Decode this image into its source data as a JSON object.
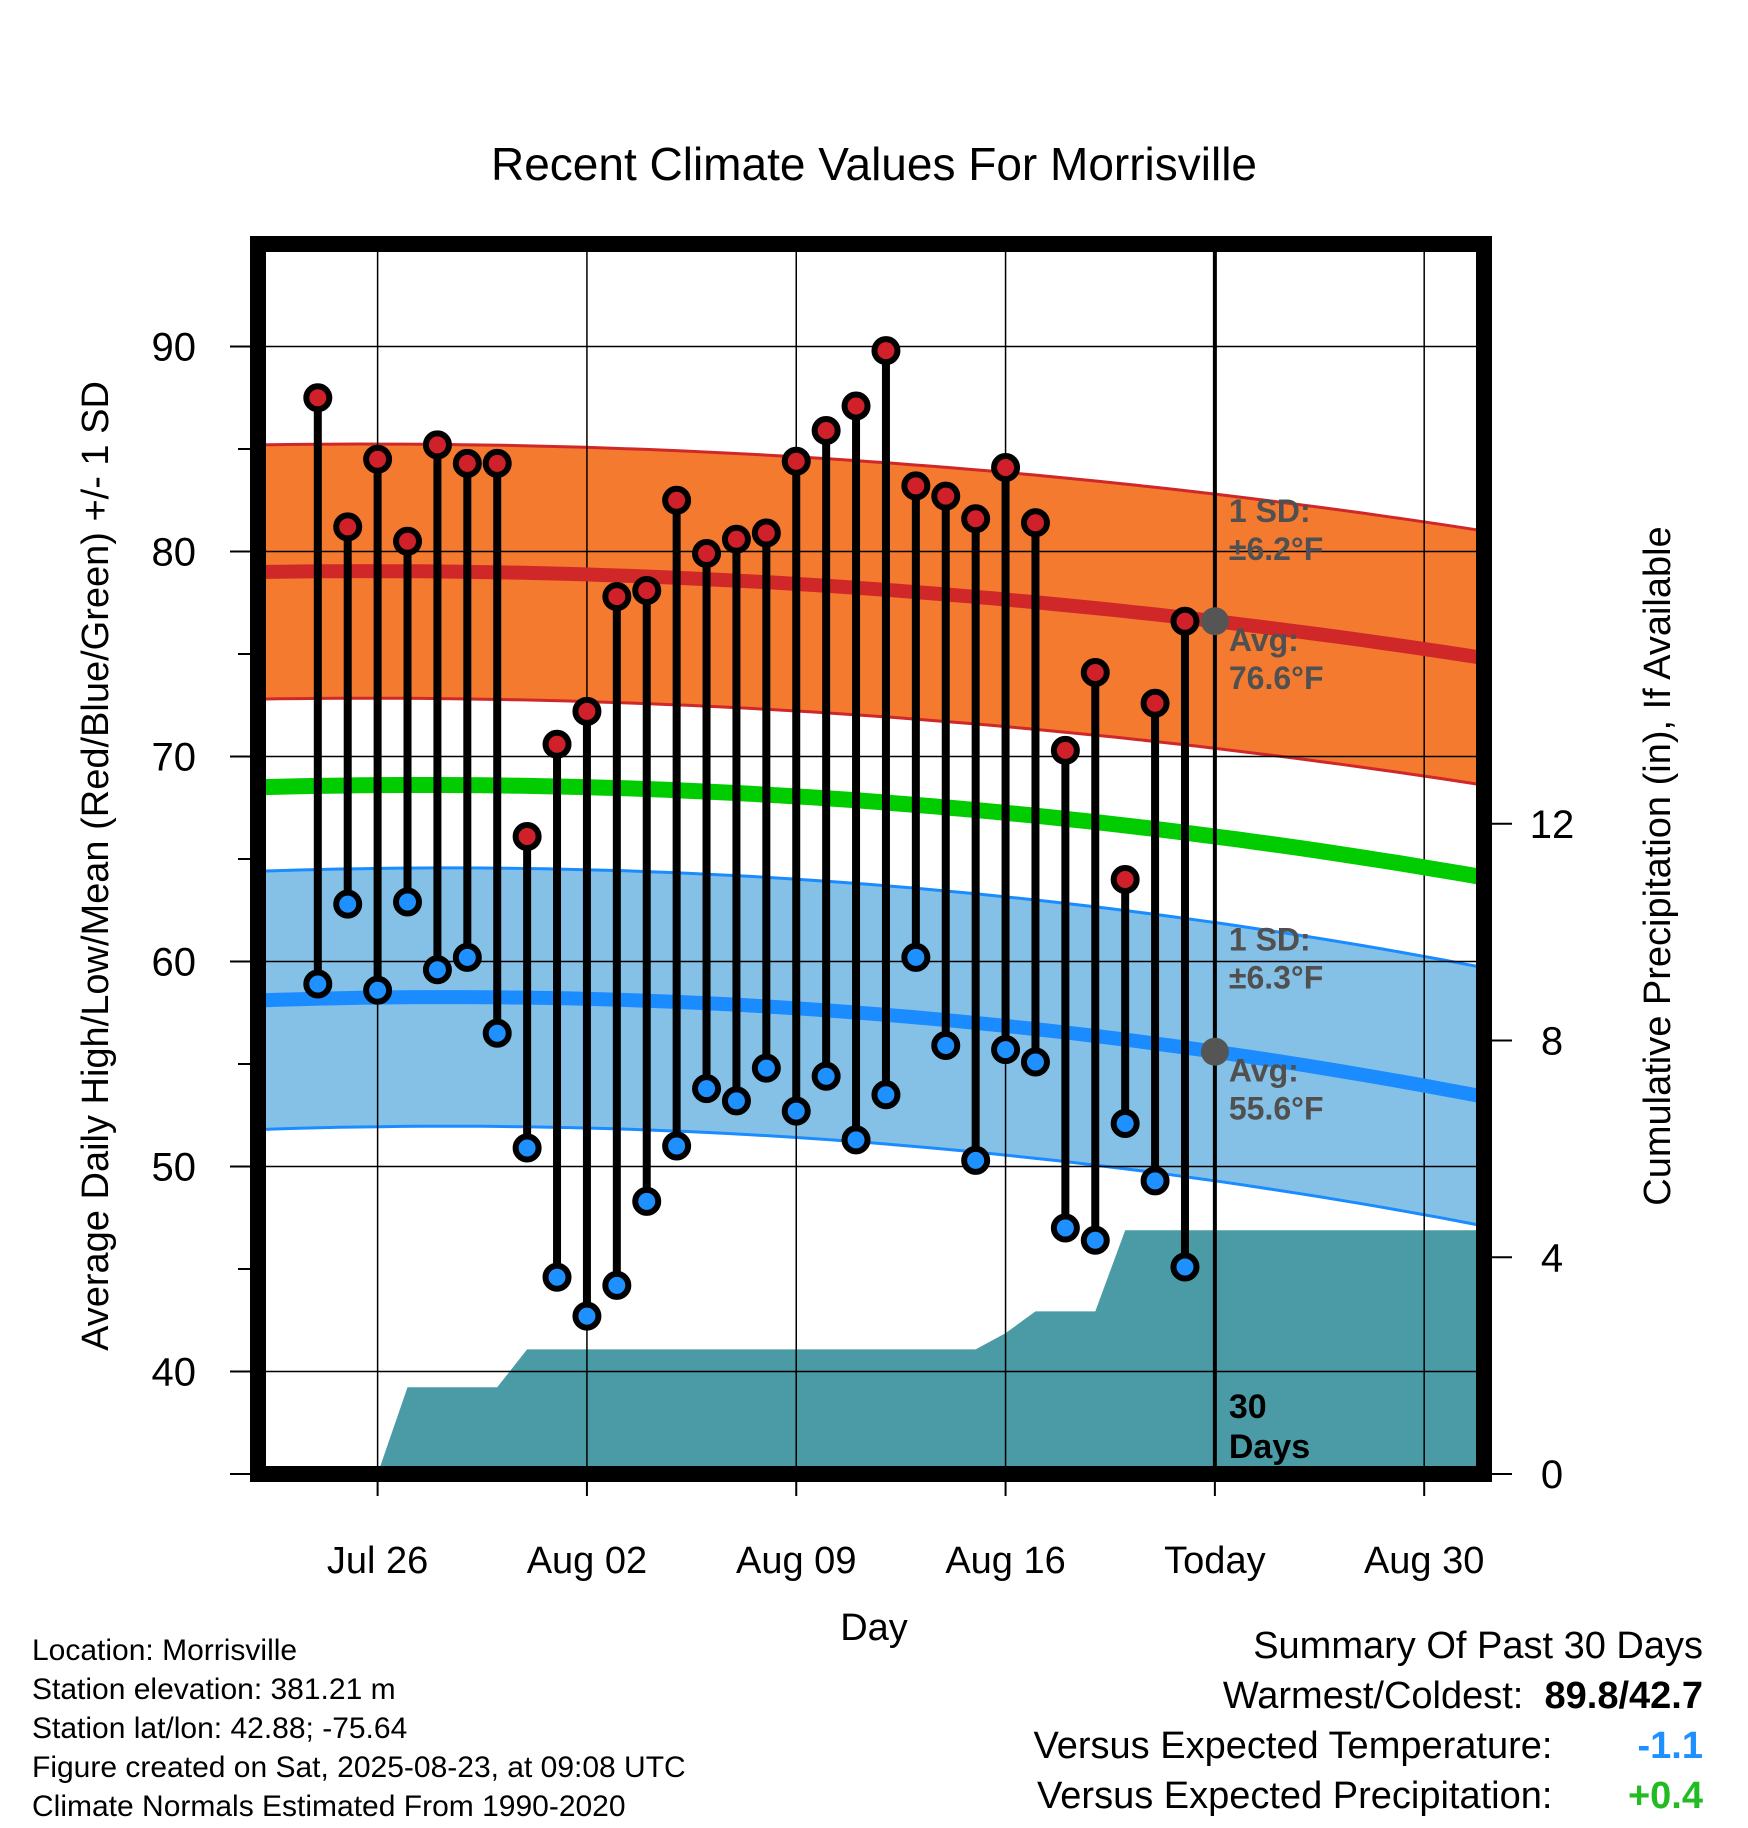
{
  "chart_data": {
    "type": "line",
    "title": "Recent Climate Values For Morrisville",
    "xlabel": "Day",
    "ylabel": "Average Daily High/Low/Mean (Red/Blue/Green) +/- 1 SD",
    "y2label": "Cumulative Precipitation (in), If Available",
    "ylim": [
      35,
      95
    ],
    "y2lim": [
      0,
      22.7
    ],
    "x_range": [
      "2025-07-22",
      "2025-09-01"
    ],
    "yticks": [
      40,
      50,
      60,
      70,
      80,
      90
    ],
    "y2ticks": [
      0,
      4,
      8,
      12
    ],
    "xticks": [
      {
        "date": "2025-07-26",
        "label": "Jul 26"
      },
      {
        "date": "2025-08-02",
        "label": "Aug 02"
      },
      {
        "date": "2025-08-09",
        "label": "Aug 09"
      },
      {
        "date": "2025-08-16",
        "label": "Aug 16"
      },
      {
        "date": "2025-08-23",
        "label": "Today"
      },
      {
        "date": "2025-08-30",
        "label": "Aug 30"
      }
    ],
    "grid": true,
    "today": "2025-08-23",
    "today_label": [
      "30",
      "Days"
    ],
    "colors": {
      "high_band": "#F47A30",
      "high_line": "#D02828",
      "low_band": "#85C1E6",
      "low_line": "#1A8CFF",
      "mean_line": "#00CC00",
      "precip": "#4A9BA5",
      "high_marker": "#D0202A",
      "low_marker": "#1E90FF",
      "today_dot": "#555555"
    },
    "normals": {
      "high_avg": {
        "start": 79.0,
        "today": 76.6,
        "end": 74.8
      },
      "high_sd": 6.2,
      "low_avg": {
        "start": 58.1,
        "today": 55.6,
        "end": 53.4
      },
      "low_sd": 6.3,
      "mean": {
        "start": 68.5,
        "today": 66.1,
        "end": 64.1
      }
    },
    "annotations": {
      "high_sd": [
        "1 SD:",
        "±6.2°F"
      ],
      "high_avg": [
        "Avg:",
        "76.6°F"
      ],
      "low_sd": [
        "1 SD:",
        "±6.3°F"
      ],
      "low_avg": [
        "Avg:",
        "55.6°F"
      ]
    },
    "daily": [
      {
        "date": "2025-07-24",
        "high": 87.5,
        "low": 58.9
      },
      {
        "date": "2025-07-25",
        "high": 81.2,
        "low": 62.8
      },
      {
        "date": "2025-07-26",
        "high": 84.5,
        "low": 58.6
      },
      {
        "date": "2025-07-27",
        "high": 80.5,
        "low": 62.9
      },
      {
        "date": "2025-07-28",
        "high": 85.2,
        "low": 59.6
      },
      {
        "date": "2025-07-29",
        "high": 84.3,
        "low": 60.2
      },
      {
        "date": "2025-07-30",
        "high": 84.3,
        "low": 56.5
      },
      {
        "date": "2025-07-31",
        "high": 66.1,
        "low": 50.9
      },
      {
        "date": "2025-08-01",
        "high": 70.6,
        "low": 44.6
      },
      {
        "date": "2025-08-02",
        "high": 72.2,
        "low": 42.7
      },
      {
        "date": "2025-08-03",
        "high": 77.8,
        "low": 44.2
      },
      {
        "date": "2025-08-04",
        "high": 78.1,
        "low": 48.3
      },
      {
        "date": "2025-08-05",
        "high": 82.5,
        "low": 51.0
      },
      {
        "date": "2025-08-06",
        "high": 79.9,
        "low": 53.8
      },
      {
        "date": "2025-08-07",
        "high": 80.6,
        "low": 53.2
      },
      {
        "date": "2025-08-08",
        "high": 80.9,
        "low": 54.8
      },
      {
        "date": "2025-08-09",
        "high": 84.4,
        "low": 52.7
      },
      {
        "date": "2025-08-10",
        "high": 85.9,
        "low": 54.4
      },
      {
        "date": "2025-08-11",
        "high": 87.1,
        "low": 51.3
      },
      {
        "date": "2025-08-12",
        "high": 89.8,
        "low": 53.5
      },
      {
        "date": "2025-08-13",
        "high": 83.2,
        "low": 60.2
      },
      {
        "date": "2025-08-14",
        "high": 82.7,
        "low": 55.9
      },
      {
        "date": "2025-08-15",
        "high": 81.6,
        "low": 50.3
      },
      {
        "date": "2025-08-16",
        "high": 84.1,
        "low": 55.7
      },
      {
        "date": "2025-08-17",
        "high": 81.4,
        "low": 55.1
      },
      {
        "date": "2025-08-18",
        "high": 70.3,
        "low": 47.0
      },
      {
        "date": "2025-08-19",
        "high": 74.1,
        "low": 46.4
      },
      {
        "date": "2025-08-20",
        "high": 64.0,
        "low": 52.1
      },
      {
        "date": "2025-08-21",
        "high": 72.6,
        "low": 49.3
      },
      {
        "date": "2025-08-22",
        "high": 76.6,
        "low": 45.1
      }
    ],
    "precip_cumulative": [
      {
        "date": "2025-07-25",
        "in": 0.0
      },
      {
        "date": "2025-07-26",
        "in": 0.0
      },
      {
        "date": "2025-07-27",
        "in": 1.6
      },
      {
        "date": "2025-07-30",
        "in": 1.6
      },
      {
        "date": "2025-07-31",
        "in": 2.3
      },
      {
        "date": "2025-08-15",
        "in": 2.3
      },
      {
        "date": "2025-08-16",
        "in": 2.6
      },
      {
        "date": "2025-08-17",
        "in": 3.0
      },
      {
        "date": "2025-08-19",
        "in": 3.0
      },
      {
        "date": "2025-08-20",
        "in": 4.5
      },
      {
        "date": "2025-09-01",
        "in": 4.5
      }
    ]
  },
  "meta": {
    "location": "Location: Morrisville",
    "elevation": "Station elevation: 381.21 m",
    "latlon": "Station lat/lon: 42.88; -75.64",
    "created": "Figure created on Sat, 2025-08-23, at 09:08 UTC",
    "normals": "Climate Normals Estimated From 1990-2020"
  },
  "summary": {
    "title": "Summary Of Past 30 Days",
    "warm_cold_label": "Warmest/Coldest:",
    "warmest": "89.8",
    "separator": "/",
    "coldest": "42.7",
    "temp_label": "Versus Expected Temperature:",
    "temp_value": "-1.1",
    "precip_label": "Versus Expected Precipitation:",
    "precip_value": "+0.4",
    "temp_color": "#1E90FF",
    "precip_color": "#22BB22"
  }
}
